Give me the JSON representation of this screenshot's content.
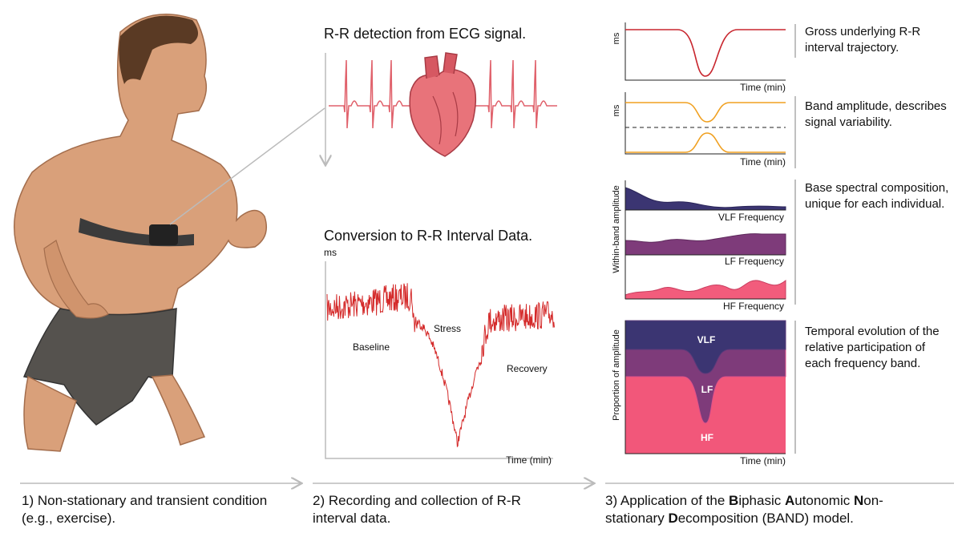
{
  "panel_1": {
    "caption": [
      "1) Non-stationary and transient condition",
      "(e.g., exercise)."
    ]
  },
  "panel_2": {
    "ecg_title": "R-R detection from ECG signal.",
    "rr_title": "Conversion to R-R Interval Data.",
    "y_label": "ms",
    "x_label": "Time (min)",
    "phases": [
      "Baseline",
      "Stress",
      "Recovery"
    ],
    "caption": [
      "2) Recording and collection of R-R",
      "interval data."
    ]
  },
  "panel_3": {
    "trajectory": {
      "y_label": "ms",
      "x_label": "Time (min)",
      "description": "Gross underlying R-R interval trajectory."
    },
    "amplitude": {
      "y_label": "ms",
      "x_label": "Time (min)",
      "description": "Band amplitude, describes signal variability."
    },
    "spectral": {
      "y_label": "Within-band amplitude",
      "bands": [
        "VLF Frequency",
        "LF Frequency",
        "HF Frequency"
      ],
      "description": "Base spectral composition, unique for each individual."
    },
    "proportion": {
      "y_label": "Proportion of amplitude",
      "x_label": "Time (min)",
      "bands": [
        "VLF",
        "LF",
        "HF"
      ],
      "description": "Temporal evolution of the relative participation of each frequency band."
    },
    "caption": [
      [
        "3) Application of the ",
        "B",
        "iphasic ",
        "A",
        "utonomic ",
        "N",
        "on-"
      ],
      [
        "stationary ",
        "D",
        "ecomposition (BAND) model."
      ]
    ]
  }
}
